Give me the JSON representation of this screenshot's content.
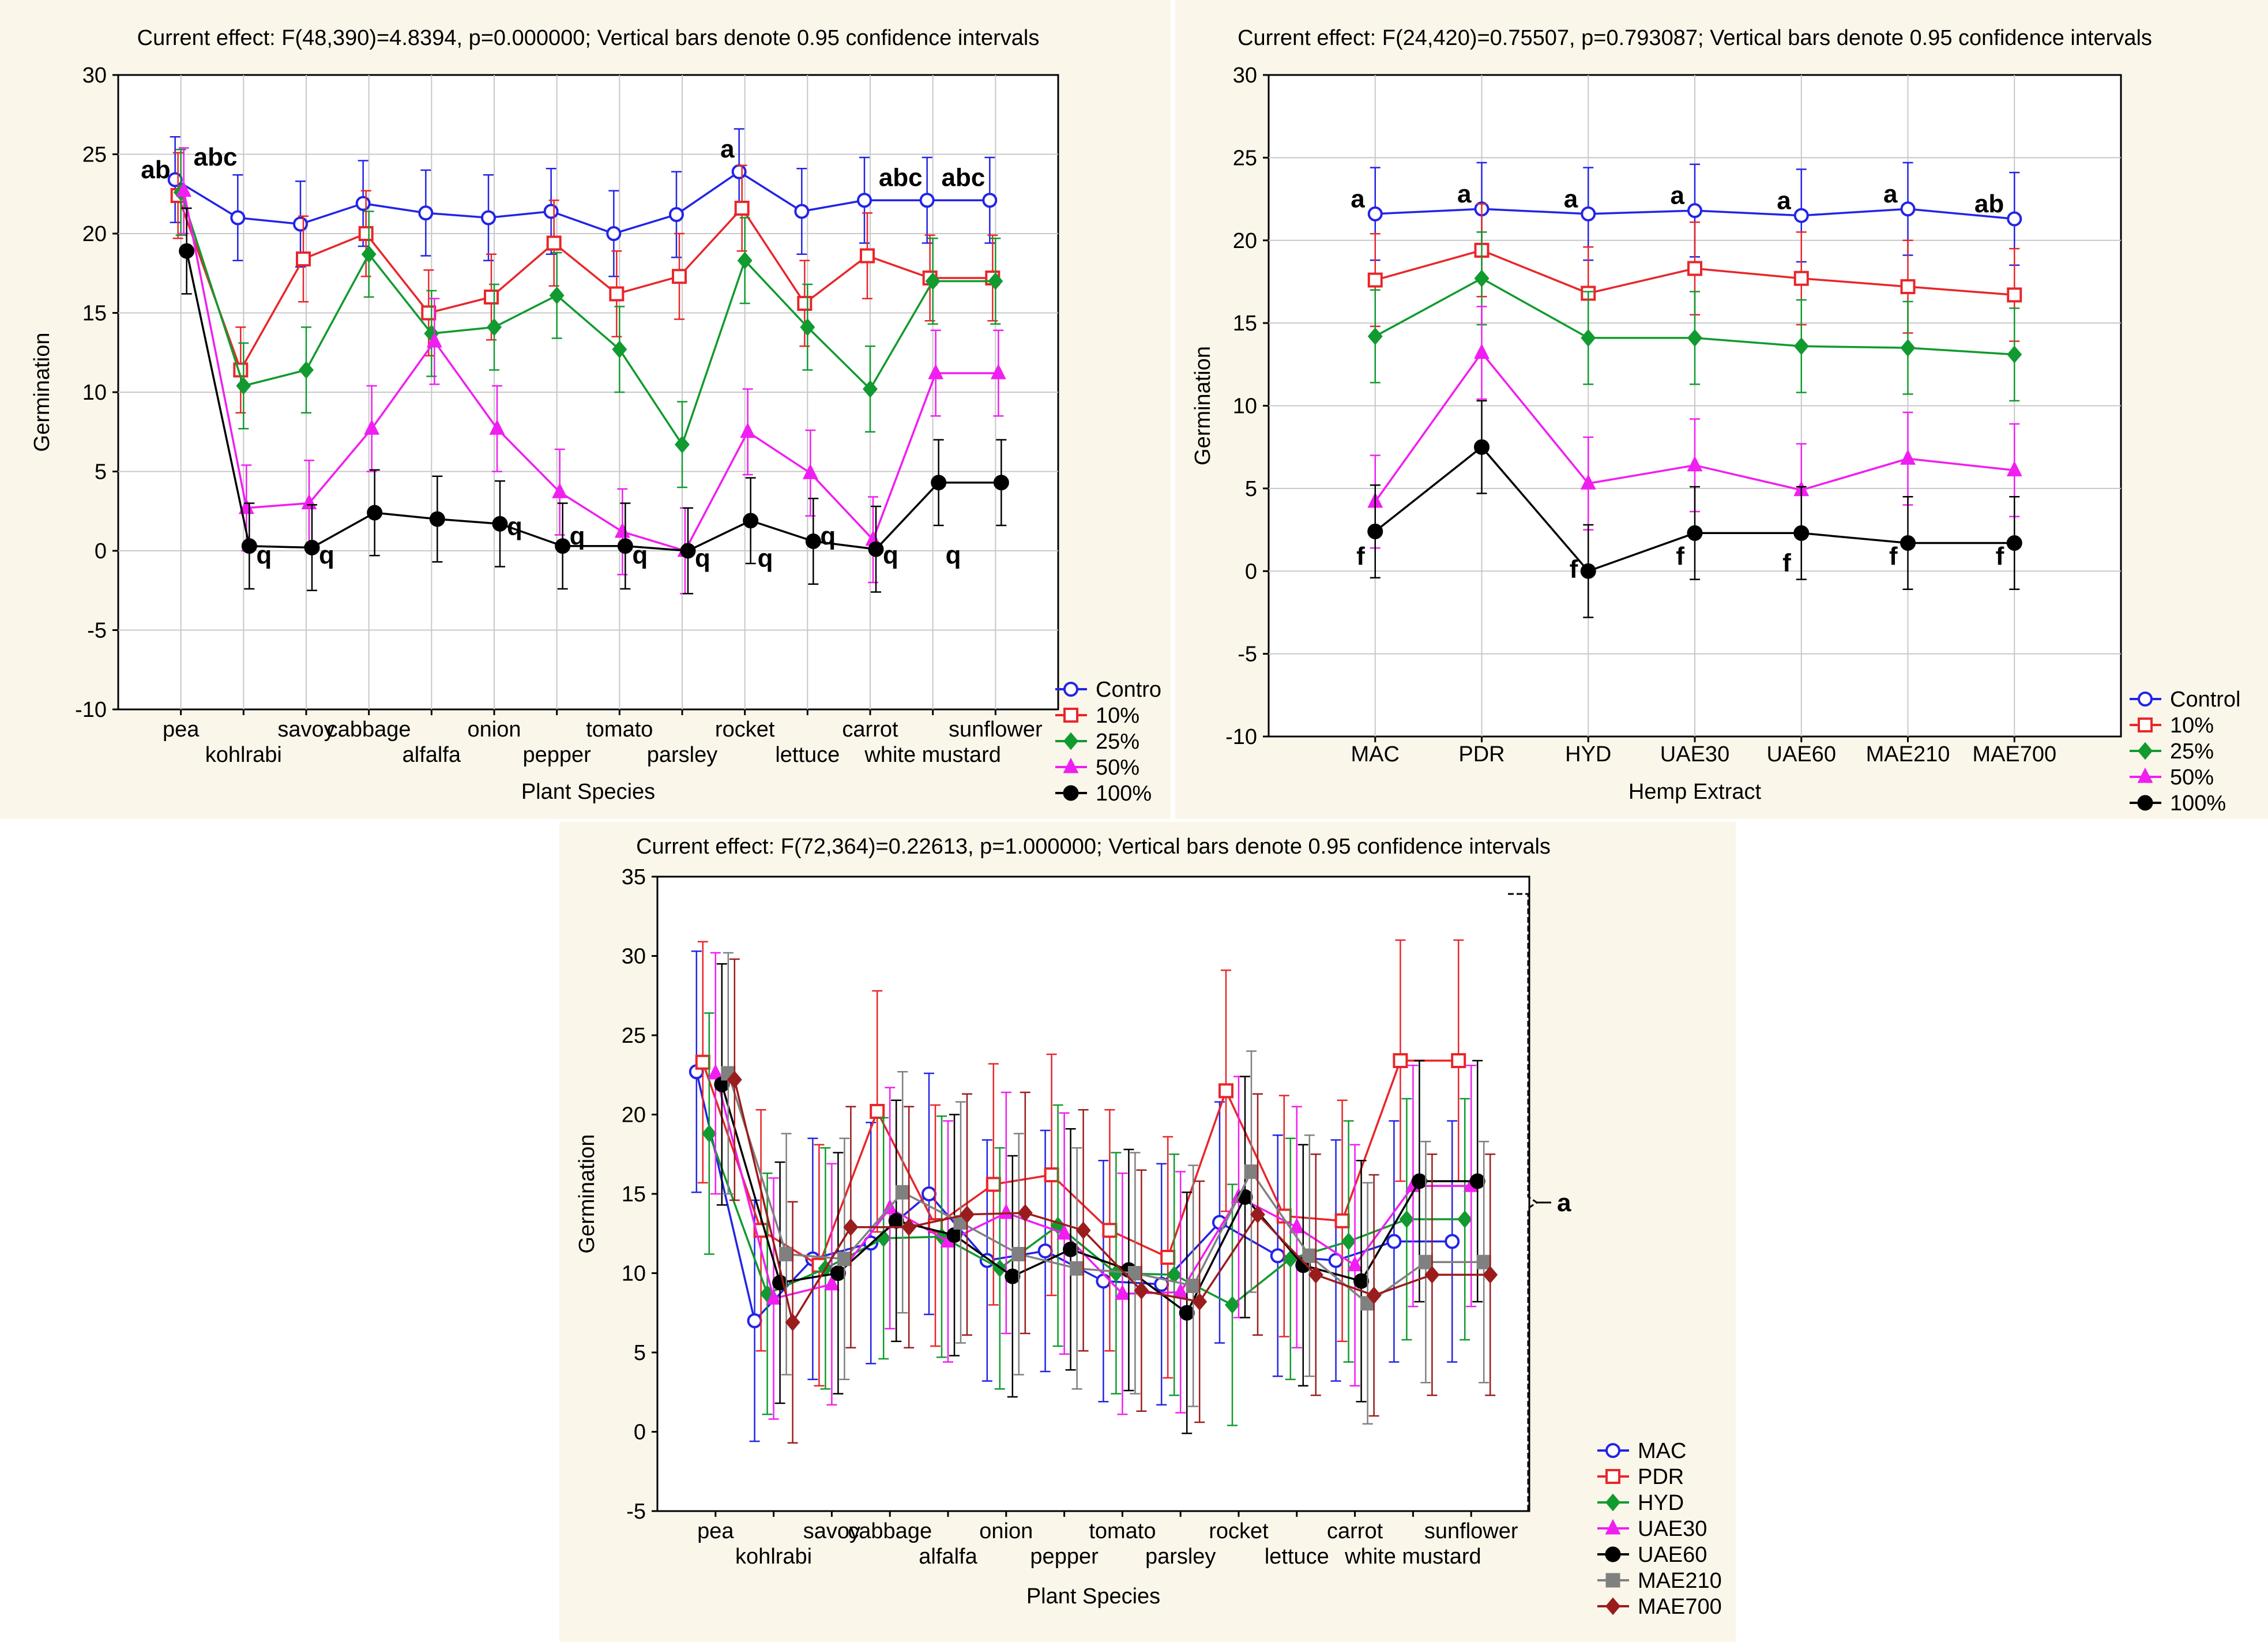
{
  "colors": {
    "panel_bg": "#fbf6ea",
    "plot_bg": "#ffffff",
    "grid": "#c8c8c8",
    "10%": "#e8262a",
    "25%": "#119a2f",
    "50%": "#f01ef0",
    "100%": "#000000",
    "Control": "#2224e6",
    "MAC": "#2224e6",
    "PDR": "#e8262a",
    "HYD": "#119a2f",
    "UAE30": "#f01ef0",
    "UAE60": "#000000",
    "MAE210": "#808080",
    "MAE700": "#9b1c1c"
  },
  "chart_data": [
    {
      "id": "top-left",
      "type": "line",
      "title": "Current effect: F(48,390)=4.8394, p=0.000000; Vertical bars denote 0.95 confidence intervals",
      "xlabel": "Plant Species",
      "ylabel": "Germination",
      "ylim": [
        -10,
        30
      ],
      "yticks": [
        -10,
        -5,
        0,
        5,
        10,
        15,
        20,
        25,
        30
      ],
      "categories": [
        "pea",
        "savoy",
        "cabbage",
        "onion",
        "tomato",
        "rocket",
        "carrot",
        "sunflower",
        "kohlrabi",
        "alfalfa",
        "pepper",
        "parsley",
        "lettuce",
        "white mustard"
      ],
      "x_order": [
        "pea",
        "kohlrabi",
        "savoy",
        "cabbage",
        "alfalfa",
        "onion",
        "pepper",
        "tomato",
        "parsley",
        "rocket",
        "lettuce",
        "carrot",
        "white mustard",
        "sunflower"
      ],
      "tick_rows": [
        [
          "pea",
          "savoy",
          "cabbage",
          "onion",
          "tomato",
          "rocket",
          "carrot",
          "sunflower"
        ],
        [
          "kohlrabi",
          "alfalfa",
          "pepper",
          "parsley",
          "lettuce",
          "white mustard"
        ]
      ],
      "grid": true,
      "legend": "bottom-right",
      "ci_halfwidth": 2.7,
      "series": [
        {
          "name": "Contro",
          "color_key": "Control",
          "marker": "circle",
          "values": [
            23.4,
            21.0,
            20.6,
            21.9,
            21.3,
            21.0,
            21.4,
            20.0,
            21.2,
            23.9,
            21.4,
            22.1,
            22.1,
            22.1
          ]
        },
        {
          "name": "10%",
          "color_key": "10%",
          "marker": "square",
          "values": [
            22.4,
            11.4,
            18.4,
            20.0,
            15.0,
            16.0,
            19.4,
            16.2,
            17.3,
            21.6,
            15.6,
            18.6,
            17.2,
            17.2
          ]
        },
        {
          "name": "25%",
          "color_key": "25%",
          "marker": "diamond",
          "values": [
            22.6,
            10.4,
            11.4,
            18.7,
            13.7,
            14.1,
            16.1,
            12.7,
            6.7,
            18.3,
            14.1,
            10.2,
            17.0,
            17.0
          ]
        },
        {
          "name": "50%",
          "color_key": "50%",
          "marker": "triangle",
          "values": [
            22.7,
            2.7,
            3.0,
            7.7,
            13.2,
            7.7,
            3.7,
            1.2,
            0.0,
            7.5,
            4.9,
            0.7,
            11.2,
            11.2
          ]
        },
        {
          "name": "100%",
          "color_key": "100%",
          "marker": "circle-filled",
          "values": [
            18.9,
            0.3,
            0.2,
            2.4,
            2.0,
            1.7,
            0.3,
            0.3,
            0.0,
            1.9,
            0.6,
            0.1,
            4.3,
            4.3
          ]
        }
      ],
      "annotations": [
        {
          "text": "ab",
          "category": "pea",
          "value": 23.5,
          "side": "left"
        },
        {
          "text": "abc",
          "category": "pea",
          "value": 24.3,
          "side": "right"
        },
        {
          "text": "a",
          "category": "rocket",
          "value": 24.8,
          "side": "left"
        },
        {
          "text": "abc",
          "category": "white mustard",
          "value": 23.0,
          "side": "left"
        },
        {
          "text": "abc",
          "category": "sunflower",
          "value": 23.0,
          "side": "left"
        },
        {
          "text": "q",
          "category": "kohlrabi",
          "value": -0.8,
          "side": "right"
        },
        {
          "text": "q",
          "category": "savoy",
          "value": -0.8,
          "side": "right"
        },
        {
          "text": "q",
          "category": "onion",
          "value": 1.0,
          "side": "right"
        },
        {
          "text": "q",
          "category": "pepper",
          "value": 0.4,
          "side": "right"
        },
        {
          "text": "q",
          "category": "tomato",
          "value": -0.8,
          "side": "right"
        },
        {
          "text": "q",
          "category": "parsley",
          "value": -1.0,
          "side": "right"
        },
        {
          "text": "q",
          "category": "rocket",
          "value": -1.0,
          "side": "right"
        },
        {
          "text": "q",
          "category": "lettuce",
          "value": 0.4,
          "side": "right"
        },
        {
          "text": "q",
          "category": "carrot",
          "value": -0.8,
          "side": "right"
        },
        {
          "text": "q",
          "category": "white mustard",
          "value": -0.8,
          "side": "right"
        }
      ]
    },
    {
      "id": "top-right",
      "type": "line",
      "title": "Current effect: F(24,420)=0.75507, p=0.793087; Vertical bars denote 0.95 confidence intervals",
      "xlabel": "Hemp Extract",
      "ylabel": "Germination",
      "ylim": [
        -10,
        30
      ],
      "yticks": [
        -10,
        -5,
        0,
        5,
        10,
        15,
        20,
        25,
        30
      ],
      "categories": [
        "MAC",
        "PDR",
        "HYD",
        "UAE30",
        "UAE60",
        "MAE210",
        "MAE700"
      ],
      "x_order": [
        "MAC",
        "PDR",
        "HYD",
        "UAE30",
        "UAE60",
        "MAE210",
        "MAE700"
      ],
      "tick_rows": [
        [
          "MAC",
          "PDR",
          "HYD",
          "UAE30",
          "UAE60",
          "MAE210",
          "MAE700"
        ]
      ],
      "grid": true,
      "legend": "bottom-right",
      "ci_halfwidth": 2.8,
      "series": [
        {
          "name": "Control",
          "color_key": "Control",
          "marker": "circle",
          "values": [
            21.6,
            21.9,
            21.6,
            21.8,
            21.5,
            21.9,
            21.3
          ]
        },
        {
          "name": "10%",
          "color_key": "10%",
          "marker": "square",
          "values": [
            17.6,
            19.4,
            16.8,
            18.3,
            17.7,
            17.2,
            16.7
          ]
        },
        {
          "name": "25%",
          "color_key": "25%",
          "marker": "diamond",
          "values": [
            14.2,
            17.7,
            14.1,
            14.1,
            13.6,
            13.5,
            13.1
          ]
        },
        {
          "name": "50%",
          "color_key": "50%",
          "marker": "triangle",
          "values": [
            4.2,
            13.2,
            5.3,
            6.4,
            4.9,
            6.8,
            6.1
          ]
        },
        {
          "name": "100%",
          "color_key": "100%",
          "marker": "circle-filled",
          "values": [
            2.4,
            7.5,
            0.0,
            2.3,
            2.3,
            1.7,
            1.7
          ]
        }
      ],
      "annotations": [
        {
          "text": "a",
          "category": "MAC",
          "value": 22.0,
          "side": "left"
        },
        {
          "text": "a",
          "category": "PDR",
          "value": 22.3,
          "side": "left"
        },
        {
          "text": "a",
          "category": "HYD",
          "value": 22.0,
          "side": "left"
        },
        {
          "text": "a",
          "category": "UAE30",
          "value": 22.2,
          "side": "left"
        },
        {
          "text": "a",
          "category": "UAE60",
          "value": 21.9,
          "side": "left"
        },
        {
          "text": "a",
          "category": "MAE210",
          "value": 22.3,
          "side": "left"
        },
        {
          "text": "ab",
          "category": "MAE700",
          "value": 21.7,
          "side": "left"
        },
        {
          "text": "f",
          "category": "MAC",
          "value": 0.4,
          "side": "left"
        },
        {
          "text": "f",
          "category": "HYD",
          "value": -0.4,
          "side": "left"
        },
        {
          "text": "f",
          "category": "UAE30",
          "value": 0.4,
          "side": "left"
        },
        {
          "text": "f",
          "category": "UAE60",
          "value": 0.0,
          "side": "left"
        },
        {
          "text": "f",
          "category": "MAE210",
          "value": 0.4,
          "side": "left"
        },
        {
          "text": "f",
          "category": "MAE700",
          "value": 0.4,
          "side": "left"
        }
      ]
    },
    {
      "id": "bottom",
      "type": "line",
      "title": "Current effect: F(72,364)=0.22613, p=1.000000; Vertical bars denote 0.95 confidence intervals",
      "xlabel": "Plant Species",
      "ylabel": "Germination",
      "ylim": [
        -5,
        35
      ],
      "yticks": [
        -5,
        0,
        5,
        10,
        15,
        20,
        25,
        30,
        35
      ],
      "categories": [
        "pea",
        "savoy",
        "cabbage",
        "onion",
        "tomato",
        "rocket",
        "carrot",
        "sunflower",
        "kohlrabi",
        "alfalfa",
        "pepper",
        "parsley",
        "lettuce",
        "white mustard"
      ],
      "x_order": [
        "pea",
        "kohlrabi",
        "savoy",
        "cabbage",
        "alfalfa",
        "onion",
        "pepper",
        "tomato",
        "parsley",
        "rocket",
        "lettuce",
        "carrot",
        "white mustard",
        "sunflower"
      ],
      "tick_rows": [
        [
          "pea",
          "savoy",
          "cabbage",
          "onion",
          "tomato",
          "rocket",
          "carrot",
          "sunflower"
        ],
        [
          "kohlrabi",
          "alfalfa",
          "pepper",
          "parsley",
          "lettuce",
          "white mustard"
        ]
      ],
      "grid": false,
      "legend": "bottom-right",
      "ci_halfwidth": 7.6,
      "series": [
        {
          "name": "MAC",
          "color_key": "MAC",
          "marker": "circle",
          "values": [
            22.7,
            7.0,
            10.9,
            11.9,
            15.0,
            10.8,
            11.4,
            9.5,
            9.3,
            13.2,
            11.1,
            10.8,
            12.0,
            12.0
          ]
        },
        {
          "name": "PDR",
          "color_key": "PDR",
          "marker": "square",
          "values": [
            23.3,
            12.7,
            10.5,
            20.2,
            13.0,
            15.6,
            16.2,
            12.7,
            11.0,
            21.5,
            13.6,
            13.3,
            23.4,
            23.4
          ]
        },
        {
          "name": "HYD",
          "color_key": "HYD",
          "marker": "diamond",
          "values": [
            18.8,
            8.7,
            10.3,
            12.2,
            12.3,
            10.3,
            13.0,
            10.0,
            9.9,
            8.0,
            10.9,
            12.0,
            13.4,
            13.4
          ]
        },
        {
          "name": "UAE30",
          "color_key": "UAE30",
          "marker": "triangle",
          "values": [
            22.6,
            8.4,
            9.3,
            14.1,
            12.0,
            13.8,
            12.5,
            8.7,
            8.8,
            14.8,
            12.9,
            10.5,
            15.5,
            15.5
          ]
        },
        {
          "name": "UAE60",
          "color_key": "UAE60",
          "marker": "circle-filled",
          "values": [
            21.9,
            9.4,
            10.0,
            13.3,
            12.4,
            9.8,
            11.5,
            10.2,
            7.5,
            14.8,
            10.5,
            9.5,
            15.8,
            15.8
          ]
        },
        {
          "name": "MAE210",
          "color_key": "MAE210",
          "marker": "square-filled",
          "values": [
            22.6,
            11.2,
            10.9,
            15.1,
            13.2,
            11.2,
            10.3,
            10.0,
            9.2,
            16.4,
            11.1,
            8.1,
            10.7,
            10.7
          ]
        },
        {
          "name": "MAE700",
          "color_key": "MAE700",
          "marker": "diamond-filled",
          "values": [
            22.2,
            6.9,
            12.9,
            12.9,
            13.7,
            13.8,
            12.7,
            8.9,
            8.2,
            13.7,
            9.9,
            8.6,
            9.9,
            9.9
          ]
        }
      ],
      "bracket_label": "a"
    }
  ]
}
